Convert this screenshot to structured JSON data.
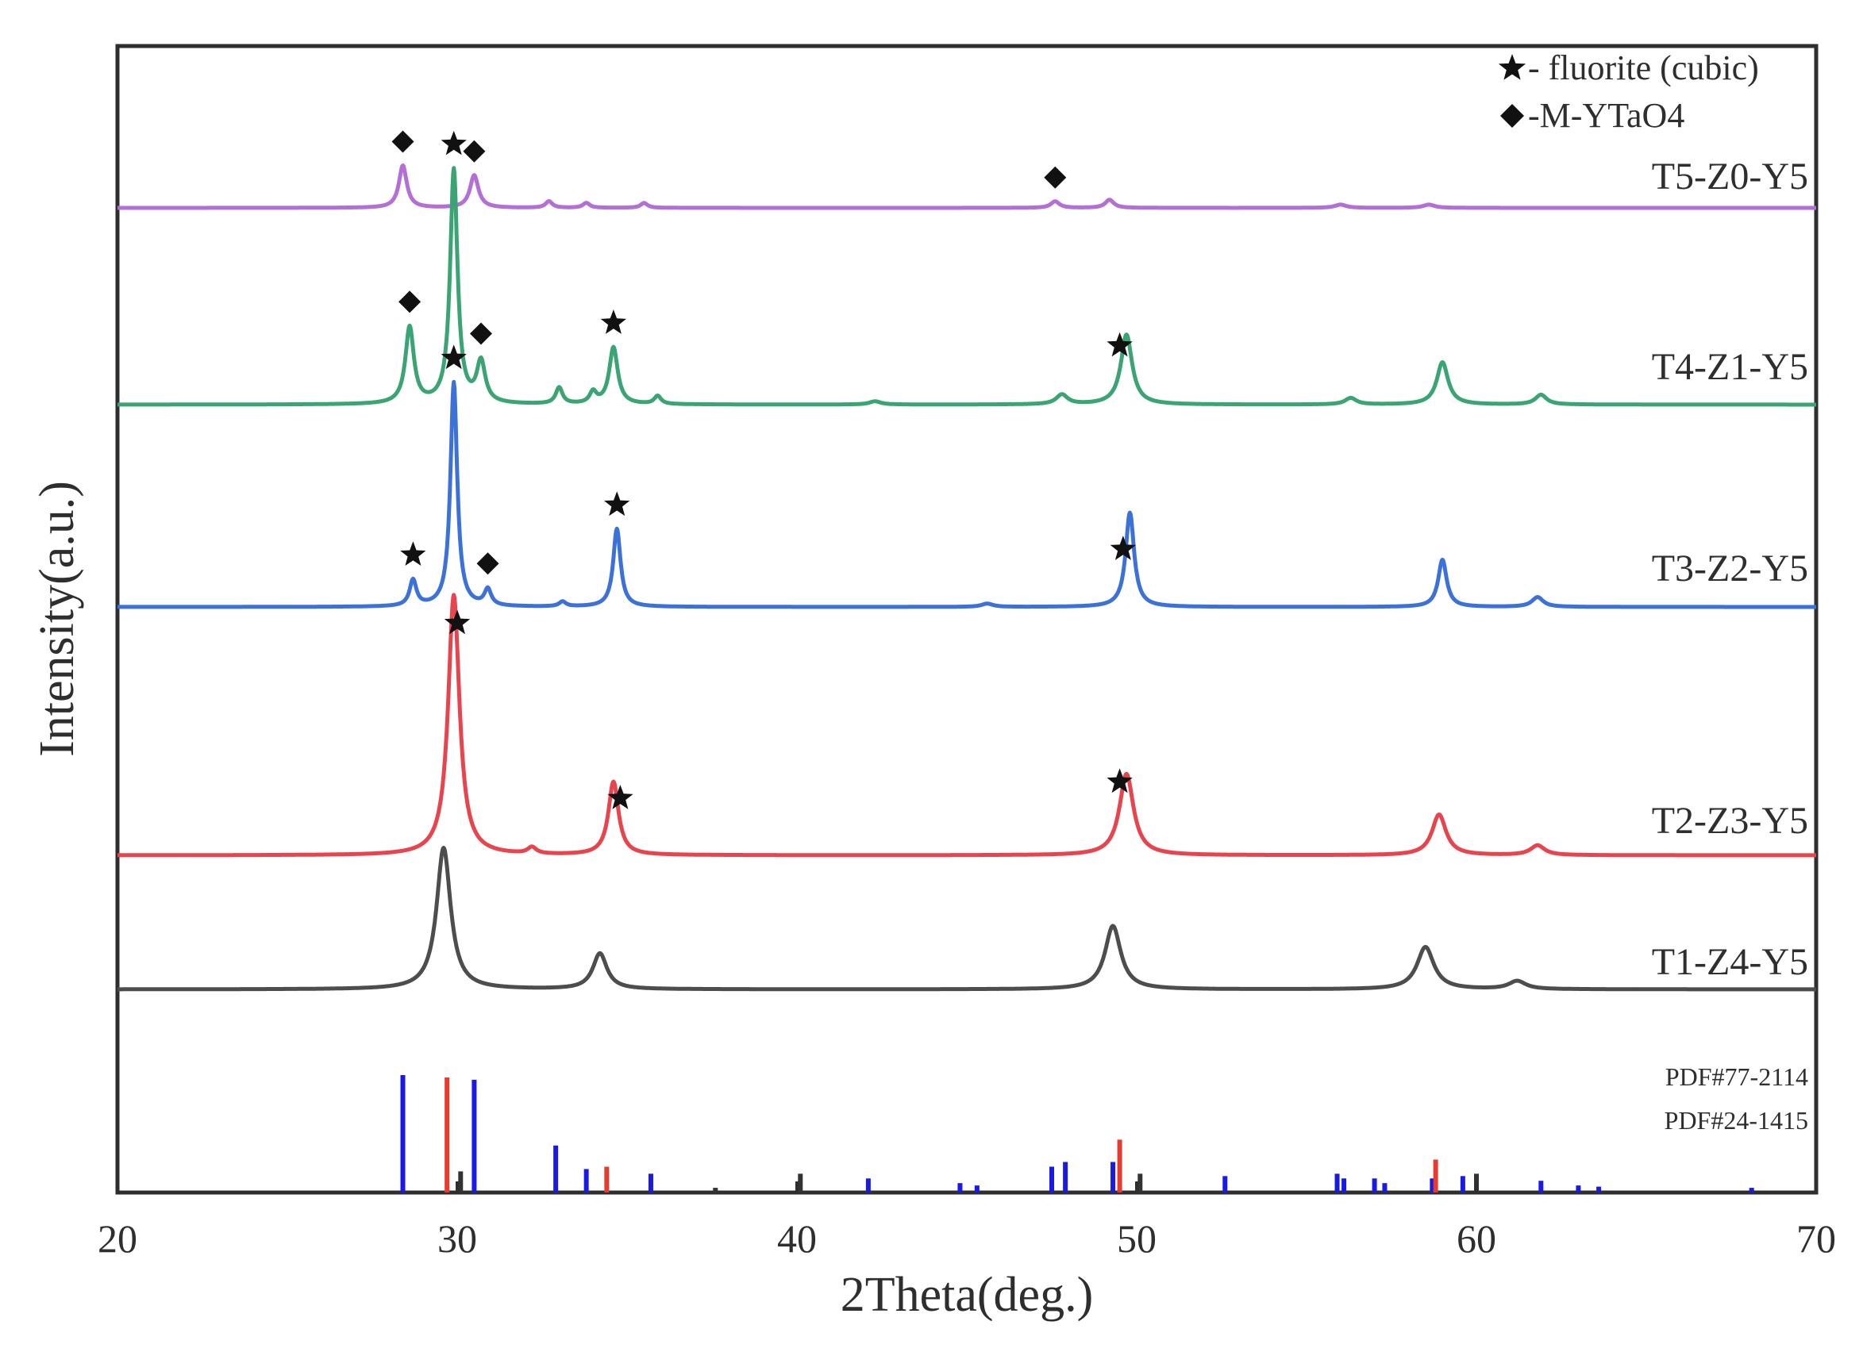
{
  "chart_data": {
    "type": "line",
    "xlabel": "2Theta(deg.)",
    "ylabel": "Intensity(a.u.)",
    "xlim": [
      20,
      70
    ],
    "xticks": [
      20,
      30,
      40,
      50,
      60,
      70
    ],
    "grid": false,
    "legend": {
      "placement": "top-right",
      "entries": [
        {
          "marker": "star",
          "label": "- fluorite (cubic)"
        },
        {
          "marker": "diamond",
          "label": "-M-YTaO4"
        }
      ]
    },
    "series": [
      {
        "name": "T5-Z0-Y5",
        "color": "#b36fd6",
        "peaks": [
          {
            "x": 28.4,
            "h": 0.26,
            "w": 0.14
          },
          {
            "x": 30.5,
            "h": 0.2,
            "w": 0.15
          },
          {
            "x": 32.7,
            "h": 0.04,
            "w": 0.12
          },
          {
            "x": 33.8,
            "h": 0.03,
            "w": 0.12
          },
          {
            "x": 35.5,
            "h": 0.03,
            "w": 0.12
          },
          {
            "x": 47.6,
            "h": 0.04,
            "w": 0.15
          },
          {
            "x": 49.2,
            "h": 0.05,
            "w": 0.15
          },
          {
            "x": 56.0,
            "h": 0.02,
            "w": 0.2
          },
          {
            "x": 58.6,
            "h": 0.02,
            "w": 0.2
          }
        ],
        "markers": [
          {
            "x": 28.4,
            "symbol": "diamond"
          },
          {
            "x": 30.5,
            "symbol": "diamond"
          },
          {
            "x": 47.6,
            "symbol": "diamond"
          }
        ]
      },
      {
        "name": "T4-Z1-Y5",
        "color": "#3aa474",
        "peaks": [
          {
            "x": 28.6,
            "h": 0.47,
            "w": 0.15
          },
          {
            "x": 29.9,
            "h": 1.44,
            "w": 0.13
          },
          {
            "x": 30.7,
            "h": 0.25,
            "w": 0.15
          },
          {
            "x": 33.0,
            "h": 0.1,
            "w": 0.12
          },
          {
            "x": 34.0,
            "h": 0.07,
            "w": 0.12
          },
          {
            "x": 34.6,
            "h": 0.35,
            "w": 0.15
          },
          {
            "x": 35.9,
            "h": 0.05,
            "w": 0.12
          },
          {
            "x": 42.3,
            "h": 0.02,
            "w": 0.2
          },
          {
            "x": 47.8,
            "h": 0.06,
            "w": 0.2
          },
          {
            "x": 49.7,
            "h": 0.43,
            "w": 0.2
          },
          {
            "x": 56.3,
            "h": 0.04,
            "w": 0.2
          },
          {
            "x": 59.0,
            "h": 0.26,
            "w": 0.2
          },
          {
            "x": 61.9,
            "h": 0.06,
            "w": 0.2
          }
        ],
        "markers": [
          {
            "x": 28.6,
            "symbol": "diamond"
          },
          {
            "x": 29.9,
            "symbol": "star"
          },
          {
            "x": 30.7,
            "symbol": "diamond"
          },
          {
            "x": 34.6,
            "symbol": "star"
          },
          {
            "x": 49.5,
            "symbol": "star"
          }
        ]
      },
      {
        "name": "T3-Z2-Y5",
        "color": "#3c72d8",
        "peaks": [
          {
            "x": 28.7,
            "h": 0.16,
            "w": 0.12
          },
          {
            "x": 29.9,
            "h": 1.38,
            "w": 0.12
          },
          {
            "x": 30.9,
            "h": 0.1,
            "w": 0.12
          },
          {
            "x": 33.1,
            "h": 0.03,
            "w": 0.12
          },
          {
            "x": 34.7,
            "h": 0.48,
            "w": 0.13
          },
          {
            "x": 45.6,
            "h": 0.02,
            "w": 0.2
          },
          {
            "x": 49.8,
            "h": 0.58,
            "w": 0.15
          },
          {
            "x": 59.0,
            "h": 0.29,
            "w": 0.15
          },
          {
            "x": 61.8,
            "h": 0.06,
            "w": 0.2
          }
        ],
        "markers": [
          {
            "x": 28.7,
            "symbol": "star"
          },
          {
            "x": 29.9,
            "symbol": "star"
          },
          {
            "x": 30.9,
            "symbol": "diamond"
          },
          {
            "x": 34.7,
            "symbol": "star"
          },
          {
            "x": 49.6,
            "symbol": "star"
          }
        ]
      },
      {
        "name": "T2-Z3-Y5",
        "color": "#e8444e",
        "peaks": [
          {
            "x": 29.9,
            "h": 1.6,
            "w": 0.2
          },
          {
            "x": 32.2,
            "h": 0.04,
            "w": 0.15
          },
          {
            "x": 34.6,
            "h": 0.45,
            "w": 0.18
          },
          {
            "x": 49.7,
            "h": 0.5,
            "w": 0.25
          },
          {
            "x": 58.9,
            "h": 0.25,
            "w": 0.25
          },
          {
            "x": 61.8,
            "h": 0.06,
            "w": 0.25
          }
        ],
        "markers": [
          {
            "x": 30.0,
            "symbol": "star"
          },
          {
            "x": 34.8,
            "symbol": "star"
          },
          {
            "x": 49.5,
            "symbol": "star"
          }
        ]
      },
      {
        "name": "T1-Z4-Y5",
        "color": "#4d4d4d",
        "peaks": [
          {
            "x": 29.6,
            "h": 0.87,
            "w": 0.25
          },
          {
            "x": 34.2,
            "h": 0.22,
            "w": 0.25
          },
          {
            "x": 49.3,
            "h": 0.39,
            "w": 0.28
          },
          {
            "x": 58.5,
            "h": 0.26,
            "w": 0.3
          },
          {
            "x": 61.2,
            "h": 0.05,
            "w": 0.3
          }
        ],
        "markers": []
      }
    ],
    "reference_patterns": [
      {
        "name": "PDF#77-2114",
        "color": "#1a1ae6",
        "lines": [
          {
            "x": 28.4,
            "h": 1.0
          },
          {
            "x": 30.5,
            "h": 0.96
          },
          {
            "x": 32.9,
            "h": 0.4
          },
          {
            "x": 33.8,
            "h": 0.2
          },
          {
            "x": 35.7,
            "h": 0.16
          },
          {
            "x": 42.1,
            "h": 0.12
          },
          {
            "x": 44.8,
            "h": 0.08
          },
          {
            "x": 45.3,
            "h": 0.06
          },
          {
            "x": 47.5,
            "h": 0.22
          },
          {
            "x": 47.9,
            "h": 0.26
          },
          {
            "x": 49.3,
            "h": 0.26
          },
          {
            "x": 52.6,
            "h": 0.14
          },
          {
            "x": 55.9,
            "h": 0.16
          },
          {
            "x": 56.1,
            "h": 0.12
          },
          {
            "x": 57.0,
            "h": 0.12
          },
          {
            "x": 57.3,
            "h": 0.08
          },
          {
            "x": 58.7,
            "h": 0.12
          },
          {
            "x": 59.6,
            "h": 0.14
          },
          {
            "x": 61.9,
            "h": 0.1
          },
          {
            "x": 63.0,
            "h": 0.06
          },
          {
            "x": 63.6,
            "h": 0.05
          },
          {
            "x": 68.1,
            "h": 0.04
          }
        ]
      },
      {
        "name": "PDF#24-1415",
        "color": "#e83a2e",
        "lines": [
          {
            "x": 29.7,
            "h": 0.98
          },
          {
            "x": 34.4,
            "h": 0.22
          },
          {
            "x": 49.5,
            "h": 0.45
          },
          {
            "x": 58.8,
            "h": 0.28
          }
        ]
      },
      {
        "name": "",
        "color": "#333333",
        "lines": [
          {
            "x": 30.1,
            "h": 0.18
          },
          {
            "x": 40.1,
            "h": 0.16
          },
          {
            "x": 50.1,
            "h": 0.16
          },
          {
            "x": 60.0,
            "h": 0.16
          },
          {
            "x": 37.6,
            "h": 0.04
          }
        ]
      }
    ]
  }
}
